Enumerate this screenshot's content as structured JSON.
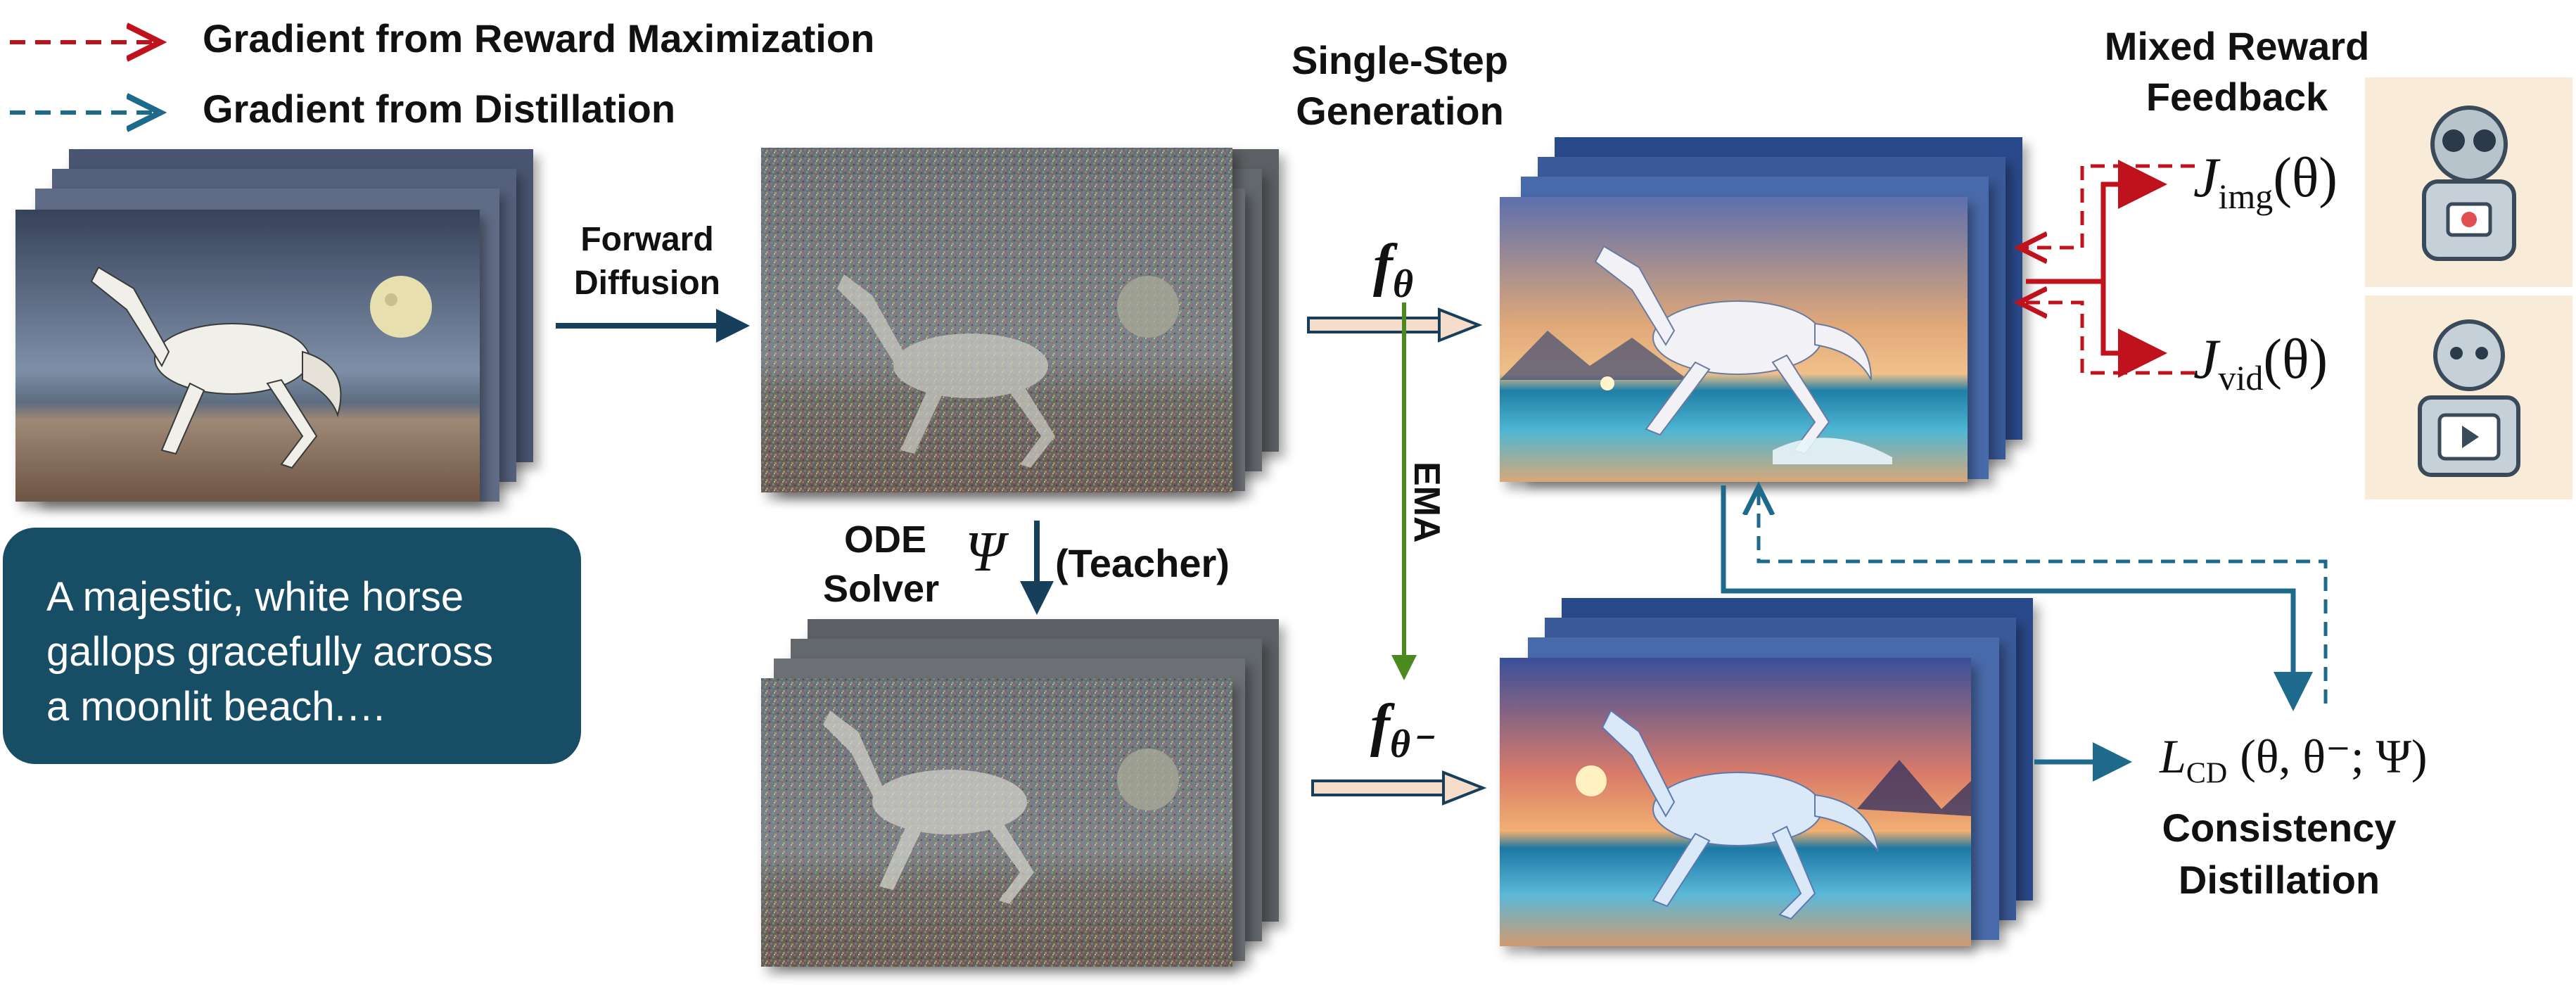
{
  "legend": {
    "reward_label": "Gradient from Reward Maximization",
    "distill_label": "Gradient from Distillation"
  },
  "labels": {
    "forward_diffusion": "Forward\nDiffusion",
    "ode": "ODE",
    "solver": "Solver",
    "psi": "Ψ",
    "teacher": "(Teacher)",
    "single_step": "Single-Step\nGeneration",
    "ema": "EMA",
    "mixed_reward": "Mixed Reward\nFeedback",
    "consistency": "Consistency\nDistillation"
  },
  "math": {
    "f": "f",
    "theta": "θ",
    "theta_minus": "θ⁻",
    "j_img_main": "J",
    "j_img_sub": "img",
    "j_img_arg": "(θ)",
    "j_vid_main": "J",
    "j_vid_sub": "vid",
    "j_vid_arg": "(θ)",
    "lcd_main": "L",
    "lcd_sub": "CD",
    "lcd_arg": "(θ, θ⁻; Ψ)"
  },
  "prompt": "A majestic, white horse\ngallops gracefully across\na moonlit beach.…",
  "colors": {
    "reward_red": "#c0121c",
    "distill_blue": "#1d6a8c",
    "ema_green": "#4b8a1e",
    "prompt_bg": "#184d66",
    "arrow_fill": "#f6dccb"
  }
}
